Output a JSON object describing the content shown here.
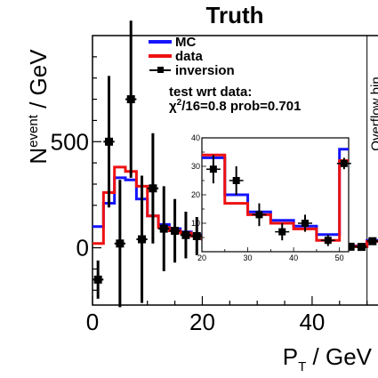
{
  "chart_data": {
    "type": "line",
    "title": "Truth",
    "xlabel_main": "P",
    "xlabel_sub": "T",
    "xlabel_unit": " / GeV",
    "ylabel_main": "N",
    "ylabel_sup": "event",
    "ylabel_unit": " / GeV",
    "xlim": [
      0,
      52
    ],
    "ylim": [
      -270,
      1000
    ],
    "x_ticks": [
      0,
      20,
      40
    ],
    "y_ticks": [
      0,
      500
    ],
    "overflow_label": "Overflow bin",
    "overflow_x": 50,
    "bin_edges": [
      0,
      2,
      4,
      6,
      8,
      10,
      12,
      14,
      16,
      18,
      20,
      22,
      24,
      26,
      28,
      30,
      32,
      34,
      36,
      38,
      40,
      42,
      44,
      46,
      48,
      50,
      52
    ],
    "series": [
      {
        "name": "MC",
        "color": "#1414ff",
        "values": [
          100,
          210,
          330,
          320,
          230,
          150,
          110,
          90,
          75,
          60,
          45,
          38,
          32,
          28,
          25,
          22,
          20,
          18,
          16,
          14,
          12,
          11,
          10,
          9,
          8,
          35
        ]
      },
      {
        "name": "data",
        "color": "#ee1111",
        "values": [
          20,
          260,
          380,
          360,
          290,
          150,
          95,
          80,
          70,
          55,
          40,
          33,
          28,
          24,
          20,
          18,
          16,
          15,
          13,
          12,
          11,
          10,
          9,
          7,
          5,
          30
        ]
      },
      {
        "name": "inversion",
        "color": "#000000",
        "points": [
          {
            "x": 1,
            "y": -150,
            "err": 90
          },
          {
            "x": 3,
            "y": 500,
            "err": 310
          },
          {
            "x": 5,
            "y": 20,
            "err": 300
          },
          {
            "x": 7,
            "y": 700,
            "err": 370
          },
          {
            "x": 9,
            "y": 40,
            "err": 300
          },
          {
            "x": 11,
            "y": 280,
            "err": 260
          },
          {
            "x": 13,
            "y": 90,
            "err": 200
          },
          {
            "x": 15,
            "y": 80,
            "err": 150
          },
          {
            "x": 17,
            "y": 60,
            "err": 110
          },
          {
            "x": 19,
            "y": 55,
            "err": 90
          },
          {
            "x": 21,
            "y": 50,
            "err": 70
          },
          {
            "x": 23,
            "y": 40,
            "err": 50
          },
          {
            "x": 25,
            "y": 30,
            "err": 40
          },
          {
            "x": 27,
            "y": 25,
            "err": 30
          },
          {
            "x": 29,
            "y": 22,
            "err": 25
          },
          {
            "x": 31,
            "y": 20,
            "err": 22
          },
          {
            "x": 33,
            "y": 18,
            "err": 20
          },
          {
            "x": 35,
            "y": 15,
            "err": 18
          },
          {
            "x": 37,
            "y": 13,
            "err": 15
          },
          {
            "x": 39,
            "y": 12,
            "err": 14
          },
          {
            "x": 41,
            "y": 11,
            "err": 12
          },
          {
            "x": 43,
            "y": 9,
            "err": 10
          },
          {
            "x": 45,
            "y": 8,
            "err": 8
          },
          {
            "x": 47,
            "y": 5,
            "err": 6
          },
          {
            "x": 49,
            "y": 4,
            "err": 5
          },
          {
            "x": 51,
            "y": 31,
            "err": 5
          }
        ]
      }
    ],
    "annotation_line1": "test wrt data:",
    "annotation_chi_symbol": "χ",
    "annotation_chi_power": "2",
    "annotation_line2_rest": "/16=0.8 prob=0.701",
    "inset": {
      "xlim": [
        20,
        52
      ],
      "ylim": [
        0,
        40
      ],
      "x_ticks": [
        20,
        30,
        40,
        50
      ],
      "y_ticks": [
        10,
        20,
        30,
        40
      ],
      "bin_edges": [
        20,
        25,
        30,
        35,
        40,
        45,
        50,
        52
      ],
      "mc_values": [
        33,
        20,
        14,
        11,
        9,
        6,
        36
      ],
      "data_values": [
        34,
        17,
        13,
        10,
        8,
        4,
        32
      ],
      "points": [
        {
          "x": 22.5,
          "y": 29,
          "err": 5
        },
        {
          "x": 27.5,
          "y": 25,
          "err": 5
        },
        {
          "x": 32.5,
          "y": 13,
          "err": 4
        },
        {
          "x": 37.5,
          "y": 7,
          "err": 3
        },
        {
          "x": 42.5,
          "y": 10,
          "err": 3
        },
        {
          "x": 47.5,
          "y": 4,
          "err": 2
        },
        {
          "x": 51,
          "y": 31,
          "err": 2
        }
      ]
    }
  }
}
